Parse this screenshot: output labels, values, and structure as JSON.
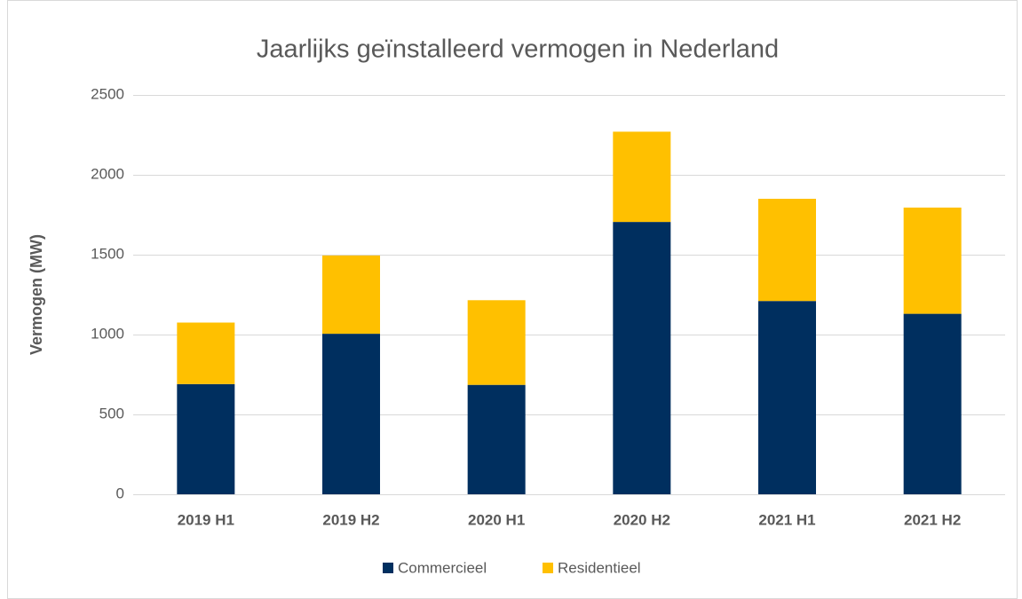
{
  "chart_data": {
    "type": "stacked_bar",
    "title": "Jaarlijks geïnstalleerd vermogen in Nederland",
    "y_label": "Vermogen (MW)",
    "categories": [
      "2019 H1",
      "2019 H2",
      "2020 H1",
      "2020 H2",
      "2021 H1",
      "2021 H2"
    ],
    "series": [
      {
        "name": "Commercieel",
        "color": "#002f5f",
        "values": [
          690,
          1005,
          685,
          1705,
          1210,
          1130
        ]
      },
      {
        "name": "Residentieel",
        "color": "#ffc000",
        "values": [
          385,
          490,
          530,
          565,
          640,
          665
        ]
      }
    ],
    "ylim": [
      0,
      2500
    ],
    "yticks": [
      0,
      500,
      1000,
      1500,
      2000,
      2500
    ],
    "grid": true,
    "legend": "bottom"
  }
}
